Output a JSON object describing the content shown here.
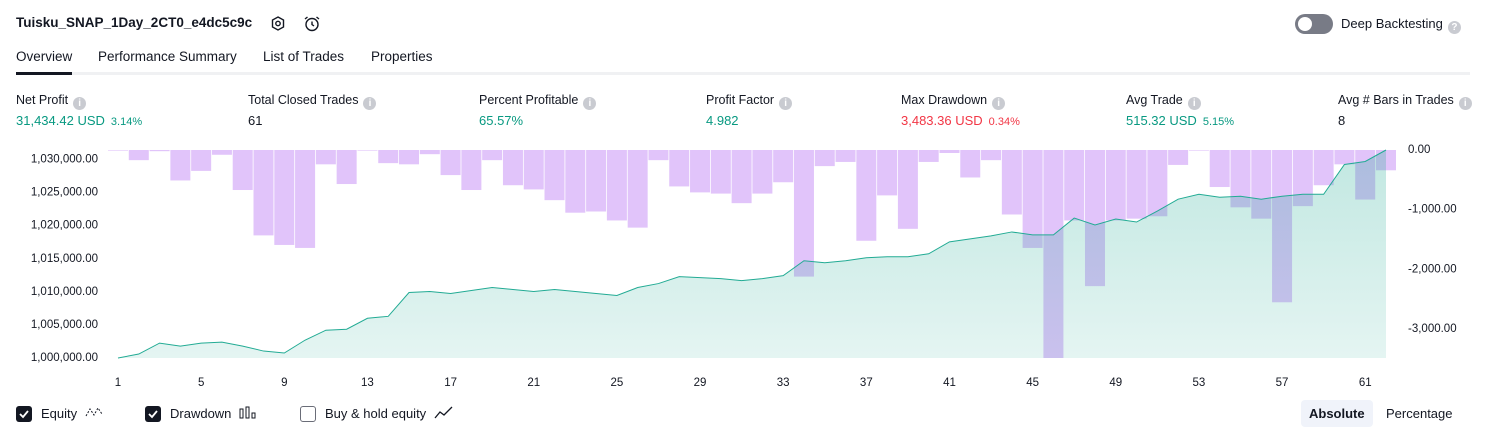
{
  "header": {
    "title": "Tuisku_SNAP_1Day_2CT0_e4dc5c9c",
    "toggle_label": "Deep Backtesting",
    "toggle_on": false
  },
  "tabs": {
    "items": [
      "Overview",
      "Performance Summary",
      "List of Trades",
      "Properties"
    ],
    "active": 0
  },
  "metrics": [
    {
      "label": "Net Profit",
      "value": "31,434.42 USD",
      "percent": "3.14%",
      "color": "#089981"
    },
    {
      "label": "Total Closed Trades",
      "value": "61",
      "color": "#131722"
    },
    {
      "label": "Percent Profitable",
      "value": "65.57%",
      "color": "#089981"
    },
    {
      "label": "Profit Factor",
      "value": "4.982",
      "color": "#089981"
    },
    {
      "label": "Max Drawdown",
      "value": "3,483.36 USD",
      "percent": "0.34%",
      "color": "#f23645"
    },
    {
      "label": "Avg Trade",
      "value": "515.32 USD",
      "percent": "5.15%",
      "color": "#089981"
    },
    {
      "label": "Avg # Bars in Trades",
      "value": "8",
      "color": "#131722"
    }
  ],
  "chart_data": {
    "type": "combo",
    "x": [
      1,
      2,
      3,
      4,
      5,
      6,
      7,
      8,
      9,
      10,
      11,
      12,
      13,
      14,
      15,
      16,
      17,
      18,
      19,
      20,
      21,
      22,
      23,
      24,
      25,
      26,
      27,
      28,
      29,
      30,
      31,
      32,
      33,
      34,
      35,
      36,
      37,
      38,
      39,
      40,
      41,
      42,
      43,
      44,
      45,
      46,
      47,
      48,
      49,
      50,
      51,
      52,
      53,
      54,
      55,
      56,
      57,
      58,
      59,
      60,
      61,
      62
    ],
    "xlim": [
      1,
      62
    ],
    "xticks": [
      1,
      5,
      9,
      13,
      17,
      21,
      25,
      29,
      33,
      37,
      41,
      45,
      49,
      53,
      57,
      61
    ],
    "ylim": [
      1000000,
      1031434
    ],
    "yticks": [
      {
        "value": 1000000,
        "label": "1,000,000.00"
      },
      {
        "value": 1005000,
        "label": "1,005,000.00"
      },
      {
        "value": 1010000,
        "label": "1,010,000.00"
      },
      {
        "value": 1015000,
        "label": "1,015,000.00"
      },
      {
        "value": 1020000,
        "label": "1,020,000.00"
      },
      {
        "value": 1025000,
        "label": "1,025,000.00"
      },
      {
        "value": 1030000,
        "label": "1,030,000.00"
      }
    ],
    "y2lim": [
      -3483.36,
      0
    ],
    "y2ticks": [
      {
        "value": 0,
        "label": "0.00"
      },
      {
        "value": -1000,
        "label": "-1,000.00"
      },
      {
        "value": -2000,
        "label": "-2,000.00"
      },
      {
        "value": -3000,
        "label": "-3,000.00"
      }
    ],
    "series": [
      {
        "name": "Equity",
        "type": "area",
        "visible": true,
        "color": "#22ab94",
        "values": [
          1000000,
          1000600,
          1002250,
          1001800,
          1002250,
          1002400,
          1001800,
          1001050,
          1000750,
          1002700,
          1004200,
          1004350,
          1006000,
          1006300,
          1009900,
          1010050,
          1009750,
          1010200,
          1010650,
          1010350,
          1010050,
          1010350,
          1010050,
          1009750,
          1009450,
          1010650,
          1011250,
          1012300,
          1012150,
          1012000,
          1011700,
          1012000,
          1012450,
          1014700,
          1014400,
          1014700,
          1015150,
          1015300,
          1015300,
          1015750,
          1017550,
          1018000,
          1018450,
          1019050,
          1018600,
          1018600,
          1021150,
          1020100,
          1021000,
          1020550,
          1022200,
          1024000,
          1024750,
          1024300,
          1024450,
          1024000,
          1024450,
          1024750,
          1024750,
          1029250,
          1029700,
          1031434
        ]
      },
      {
        "name": "Drawdown",
        "type": "bar",
        "axis": "y2",
        "visible": true,
        "color": "#e1c4fa",
        "values": [
          -10,
          -170,
          -20,
          -510,
          -350,
          -80,
          -670,
          -1430,
          -1590,
          -1640,
          -240,
          -570,
          -10,
          -220,
          -240,
          -70,
          -420,
          -670,
          -170,
          -590,
          -660,
          -840,
          -1050,
          -1030,
          -1180,
          -1300,
          -170,
          -610,
          -710,
          -730,
          -890,
          -730,
          -540,
          -2120,
          -270,
          -200,
          -1520,
          -760,
          -1320,
          -200,
          -50,
          -460,
          -170,
          -1080,
          -1640,
          -3483.36,
          -1180,
          -2280,
          -1180,
          -1150,
          -1110,
          -250,
          -10,
          -620,
          -960,
          -1150,
          -2550,
          -940,
          -590,
          -240,
          -830,
          -340
        ]
      },
      {
        "name": "Buy & hold equity",
        "type": "line",
        "visible": false,
        "color": "#131722"
      }
    ],
    "scale_modes": [
      "Absolute",
      "Percentage"
    ],
    "scale_mode": 0
  }
}
